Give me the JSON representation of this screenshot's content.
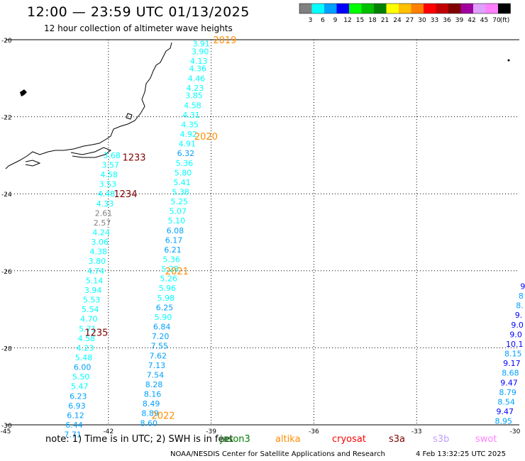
{
  "header": {
    "title": "12:00 — 23:59 UTC 01/13/2025",
    "subtitle": "12 hour collection of altimeter wave heights"
  },
  "colorbar": {
    "colors": [
      "#808080",
      "#00ffff",
      "#00a0ff",
      "#0000ff",
      "#00ff00",
      "#00c000",
      "#008000",
      "#ffff00",
      "#ffc000",
      "#ff8000",
      "#ff0000",
      "#c00000",
      "#800000",
      "#a000a0",
      "#e0a0ff",
      "#ff80ff",
      "#000000"
    ],
    "labels": [
      "3",
      "6",
      "9",
      "12",
      "15",
      "18",
      "21",
      "24",
      "27",
      "30",
      "33",
      "36",
      "39",
      "42",
      "45",
      "70",
      "(ft)"
    ]
  },
  "axes": {
    "lat_labels": [
      "-20",
      "-22",
      "-24",
      "-26",
      "-28",
      "-30"
    ],
    "lon_labels": [
      "-45",
      "-42",
      "-39",
      "-36",
      "-33",
      "-30"
    ]
  },
  "tracks": [
    {
      "points": [
        {
          "lat": -20.1,
          "lon": -39.29,
          "v": "3.91"
        },
        {
          "lat": -20.3,
          "lon": -39.32,
          "v": "3.90"
        },
        {
          "lat": -20.55,
          "lon": -39.36,
          "v": "4.13"
        },
        {
          "lat": -20.75,
          "lon": -39.39,
          "v": "4.36"
        },
        {
          "lat": -21.0,
          "lon": -39.43,
          "v": "4.46"
        },
        {
          "lat": -21.25,
          "lon": -39.47,
          "v": "4.23"
        },
        {
          "lat": -21.45,
          "lon": -39.5,
          "v": "3.85"
        },
        {
          "lat": -21.7,
          "lon": -39.54,
          "v": "4.58"
        },
        {
          "lat": -21.95,
          "lon": -39.58,
          "v": "4.31"
        },
        {
          "lat": -22.2,
          "lon": -39.62,
          "v": "4.35"
        },
        {
          "lat": -22.45,
          "lon": -39.66,
          "v": "4.92"
        },
        {
          "lat": -22.7,
          "lon": -39.7,
          "v": "4.91"
        },
        {
          "lat": -22.95,
          "lon": -39.74,
          "v": "6.32"
        },
        {
          "lat": -23.2,
          "lon": -39.78,
          "v": "5.36"
        },
        {
          "lat": -23.45,
          "lon": -39.82,
          "v": "5.80"
        },
        {
          "lat": -23.7,
          "lon": -39.85,
          "v": "5.41"
        },
        {
          "lat": -23.95,
          "lon": -39.89,
          "v": "5.38"
        },
        {
          "lat": -24.2,
          "lon": -39.93,
          "v": "5.25"
        },
        {
          "lat": -24.45,
          "lon": -39.97,
          "v": "5.07"
        },
        {
          "lat": -24.7,
          "lon": -40.01,
          "v": "5.10"
        },
        {
          "lat": -24.95,
          "lon": -40.05,
          "v": "6.08"
        },
        {
          "lat": -25.2,
          "lon": -40.09,
          "v": "6.17"
        },
        {
          "lat": -25.45,
          "lon": -40.12,
          "v": "6.21"
        },
        {
          "lat": -25.7,
          "lon": -40.16,
          "v": "5.36"
        },
        {
          "lat": -25.95,
          "lon": -40.2,
          "v": "5.28"
        },
        {
          "lat": -26.2,
          "lon": -40.24,
          "v": "5.26"
        },
        {
          "lat": -26.45,
          "lon": -40.28,
          "v": "5.96"
        },
        {
          "lat": -26.7,
          "lon": -40.32,
          "v": "5.98"
        },
        {
          "lat": -26.95,
          "lon": -40.36,
          "v": "6.25"
        },
        {
          "lat": -27.2,
          "lon": -40.4,
          "v": "5.90"
        },
        {
          "lat": -27.45,
          "lon": -40.44,
          "v": "6.84"
        },
        {
          "lat": -27.7,
          "lon": -40.48,
          "v": "7.20"
        },
        {
          "lat": -27.95,
          "lon": -40.51,
          "v": "7.55"
        },
        {
          "lat": -28.2,
          "lon": -40.55,
          "v": "7.62"
        },
        {
          "lat": -28.45,
          "lon": -40.59,
          "v": "7.13"
        },
        {
          "lat": -28.7,
          "lon": -40.63,
          "v": "7.54"
        },
        {
          "lat": -28.95,
          "lon": -40.67,
          "v": "8.28"
        },
        {
          "lat": -29.2,
          "lon": -40.71,
          "v": "8.16"
        },
        {
          "lat": -29.45,
          "lon": -40.75,
          "v": "8.49"
        },
        {
          "lat": -29.7,
          "lon": -40.78,
          "v": "8.89"
        },
        {
          "lat": -29.95,
          "lon": -40.82,
          "v": "8.60"
        }
      ]
    },
    {
      "points": [
        {
          "lat": -23.0,
          "lon": -41.9,
          "v": "3.68"
        },
        {
          "lat": -23.25,
          "lon": -41.94,
          "v": "3.57"
        },
        {
          "lat": -23.5,
          "lon": -41.98,
          "v": "4.58"
        },
        {
          "lat": -23.75,
          "lon": -42.02,
          "v": "3.53"
        },
        {
          "lat": -24.0,
          "lon": -42.06,
          "v": "4.48"
        },
        {
          "lat": -24.25,
          "lon": -42.1,
          "v": "4.33"
        },
        {
          "lat": -24.5,
          "lon": -42.14,
          "v": "2.61"
        },
        {
          "lat": -24.75,
          "lon": -42.18,
          "v": "2.57"
        },
        {
          "lat": -25.0,
          "lon": -42.21,
          "v": "4.24"
        },
        {
          "lat": -25.25,
          "lon": -42.25,
          "v": "3.06"
        },
        {
          "lat": -25.5,
          "lon": -42.29,
          "v": "4.38"
        },
        {
          "lat": -25.75,
          "lon": -42.33,
          "v": "3.80"
        },
        {
          "lat": -26.0,
          "lon": -42.37,
          "v": "4.74"
        },
        {
          "lat": -26.25,
          "lon": -42.41,
          "v": "5.14"
        },
        {
          "lat": -26.5,
          "lon": -42.45,
          "v": "3.94"
        },
        {
          "lat": -26.75,
          "lon": -42.49,
          "v": "5.53"
        },
        {
          "lat": -27.0,
          "lon": -42.53,
          "v": "5.54"
        },
        {
          "lat": -27.25,
          "lon": -42.57,
          "v": "4.70"
        },
        {
          "lat": -27.5,
          "lon": -42.61,
          "v": "5.71"
        },
        {
          "lat": -27.75,
          "lon": -42.64,
          "v": "4.58"
        },
        {
          "lat": -28.0,
          "lon": -42.68,
          "v": "4.23"
        },
        {
          "lat": -28.25,
          "lon": -42.72,
          "v": "5.48"
        },
        {
          "lat": -28.5,
          "lon": -42.76,
          "v": "6.00"
        },
        {
          "lat": -28.75,
          "lon": -42.8,
          "v": "5.50"
        },
        {
          "lat": -29.0,
          "lon": -42.84,
          "v": "5.47"
        },
        {
          "lat": -29.25,
          "lon": -42.88,
          "v": "6.23"
        },
        {
          "lat": -29.5,
          "lon": -42.92,
          "v": "6.93"
        },
        {
          "lat": -29.75,
          "lon": -42.96,
          "v": "6.12"
        },
        {
          "lat": -30.0,
          "lon": -43.0,
          "v": "6.44"
        },
        {
          "lat": -30.25,
          "lon": -43.04,
          "v": "7.71"
        }
      ]
    },
    {
      "points": [
        {
          "lat": -26.4,
          "lon": -29.9,
          "v": "9"
        },
        {
          "lat": -26.65,
          "lon": -29.95,
          "v": "8"
        },
        {
          "lat": -26.9,
          "lon": -29.99,
          "v": "8."
        },
        {
          "lat": -27.15,
          "lon": -30.02,
          "v": "9."
        },
        {
          "lat": -27.4,
          "lon": -30.06,
          "v": "9.0"
        },
        {
          "lat": -27.65,
          "lon": -30.1,
          "v": "9.0"
        },
        {
          "lat": -27.9,
          "lon": -30.14,
          "v": "10.1"
        },
        {
          "lat": -28.15,
          "lon": -30.18,
          "v": "8.15"
        },
        {
          "lat": -28.4,
          "lon": -30.22,
          "v": "9.17"
        },
        {
          "lat": -28.65,
          "lon": -30.26,
          "v": "8.68"
        },
        {
          "lat": -28.9,
          "lon": -30.3,
          "v": "9.47"
        },
        {
          "lat": -29.15,
          "lon": -30.34,
          "v": "8.79"
        },
        {
          "lat": -29.4,
          "lon": -30.38,
          "v": "8.54"
        },
        {
          "lat": -29.65,
          "lon": -30.42,
          "v": "9.47"
        },
        {
          "lat": -29.9,
          "lon": -30.46,
          "v": "8.95"
        }
      ]
    }
  ],
  "time_labels": [
    {
      "text": "2019",
      "lat": -20.0,
      "lon": -38.6,
      "color": "#ff8c00"
    },
    {
      "text": "2020",
      "lat": -22.5,
      "lon": -39.15,
      "color": "#ff8c00"
    },
    {
      "text": "1233",
      "lat": -23.05,
      "lon": -41.25,
      "color": "#800000"
    },
    {
      "text": "1234",
      "lat": -24.0,
      "lon": -41.5,
      "color": "#800000"
    },
    {
      "text": "2021",
      "lat": -26.0,
      "lon": -40.0,
      "color": "#ff8c00"
    },
    {
      "text": "1235",
      "lat": -27.6,
      "lon": -42.35,
      "color": "#800000"
    },
    {
      "text": "2022",
      "lat": -29.75,
      "lon": -40.4,
      "color": "#ff8c00"
    }
  ],
  "footer": {
    "note": "note:  1) Time is in UTC; 2) SWH is in feet",
    "credit": "NOAA/NESDIS Center for Satellite Applications and Research",
    "date": "4 Feb 13:32:25 UTC 2025",
    "legend": [
      {
        "label": "jason3",
        "color": "#008000"
      },
      {
        "label": "altika",
        "color": "#ff8c00"
      },
      {
        "label": "cryosat",
        "color": "#ff0000"
      },
      {
        "label": "s3a",
        "color": "#800000"
      },
      {
        "label": "s3b",
        "color": "#c0a0ff"
      },
      {
        "label": "swot",
        "color": "#ff80ff"
      }
    ]
  }
}
